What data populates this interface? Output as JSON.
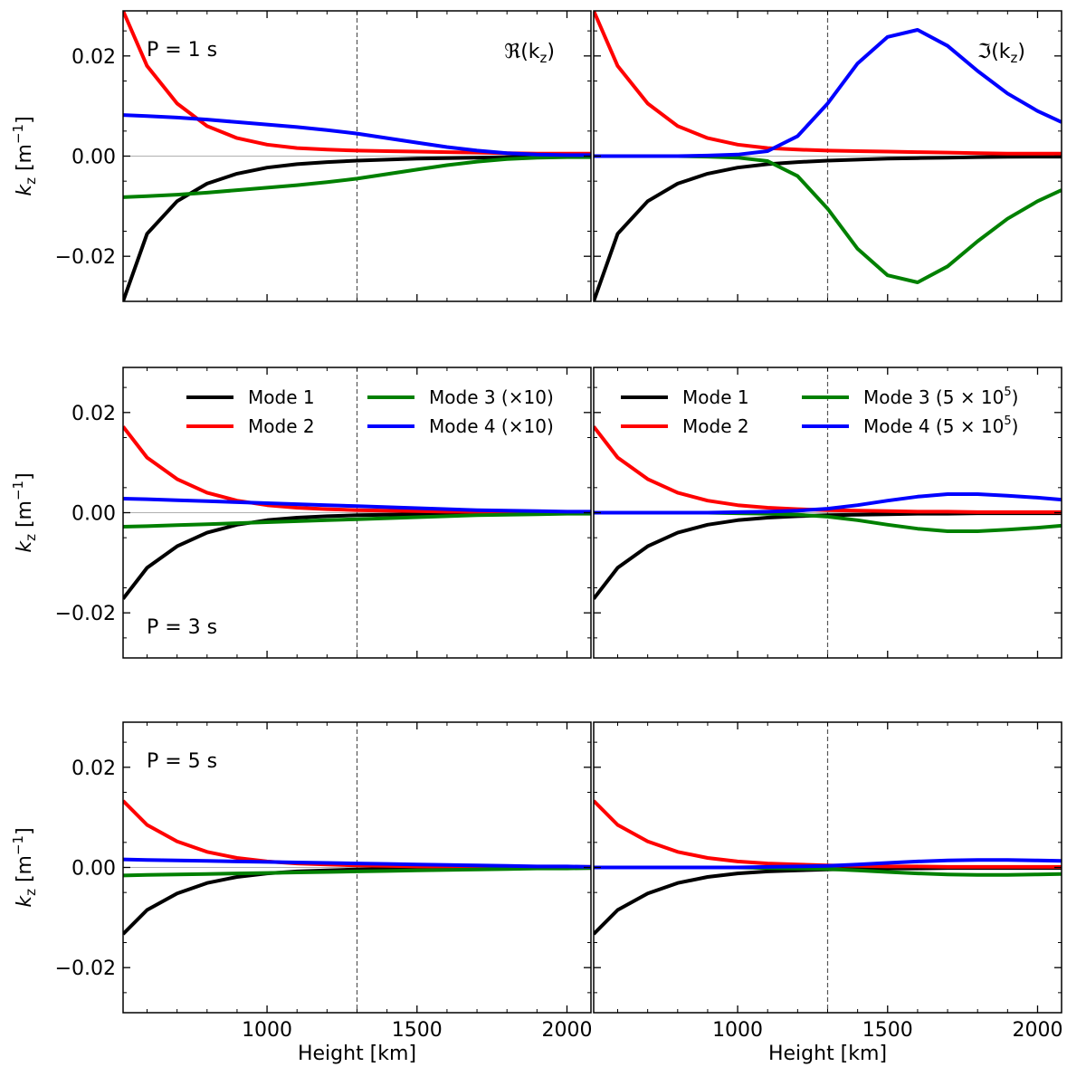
{
  "chart_data": {
    "type": "line",
    "figure": "kz vs height, 3x2 panel grid",
    "xlim": [
      520,
      2080
    ],
    "ylim": [
      -0.029,
      0.029
    ],
    "xticks": [
      1000,
      1500,
      2000
    ],
    "yticks": [
      0.02,
      0.0,
      -0.02
    ],
    "ytick_labels": [
      "0.02",
      "0.00",
      "−0.02"
    ],
    "xlabel": "Height [km]",
    "ylabel_main": "k",
    "ylabel_sub": "z",
    "ylabel_unit_open": " [m",
    "ylabel_unit_exp": "−1",
    "ylabel_unit_close": "]",
    "vline_x": 1300,
    "column_titles": [
      "ℜ(k",
      "ℑ(k"
    ],
    "column_title_sub": "z",
    "column_title_close": ")",
    "row_labels": [
      "P = 1 s",
      "P = 3 s",
      "P = 5 s"
    ],
    "legends": [
      {
        "column": 0,
        "entries": [
          {
            "name": "Mode 1",
            "color": "#000000"
          },
          {
            "name": "Mode 2",
            "color": "#ff0000"
          },
          {
            "name": "Mode 3 (×10)",
            "color": "#008000"
          },
          {
            "name": "Mode 4 (×10)",
            "color": "#0000ff"
          }
        ]
      },
      {
        "column": 1,
        "entries": [
          {
            "name": "Mode 1",
            "color": "#000000"
          },
          {
            "name": "Mode 2",
            "color": "#ff0000"
          },
          {
            "name": "Mode 3 (5 × 10",
            "sup": "5",
            "close": ")",
            "color": "#008000"
          },
          {
            "name": "Mode 4 (5 × 10",
            "sup": "5",
            "close": ")",
            "color": "#0000ff"
          }
        ]
      }
    ],
    "x": [
      520,
      600,
      700,
      800,
      900,
      1000,
      1100,
      1200,
      1300,
      1400,
      1500,
      1600,
      1700,
      1800,
      1900,
      2000,
      2080
    ],
    "panels": [
      {
        "row": 0,
        "col": 0,
        "component": "real",
        "period": "1 s",
        "series": [
          {
            "name": "Mode 1",
            "color": "#000000",
            "values": [
              -0.029,
              -0.0155,
              -0.009,
              -0.0055,
              -0.0035,
              -0.0023,
              -0.0016,
              -0.0012,
              -0.0009,
              -0.0007,
              -0.0005,
              -0.0004,
              -0.0003,
              -0.0002,
              -0.00015,
              -0.0001,
              -0.0001
            ]
          },
          {
            "name": "Mode 2",
            "color": "#ff0000",
            "values": [
              0.029,
              0.018,
              0.0105,
              0.006,
              0.0036,
              0.0023,
              0.0016,
              0.0013,
              0.0011,
              0.001,
              0.0009,
              0.0008,
              0.0007,
              0.0006,
              0.0005,
              0.0005,
              0.0005
            ]
          },
          {
            "name": "Mode 3",
            "color": "#008000",
            "values": [
              -0.0082,
              -0.008,
              -0.0077,
              -0.0073,
              -0.0068,
              -0.0063,
              -0.0058,
              -0.0052,
              -0.0045,
              -0.0036,
              -0.0027,
              -0.0018,
              -0.0011,
              -0.0006,
              -0.0003,
              -0.0002,
              -0.0002
            ]
          },
          {
            "name": "Mode 4",
            "color": "#0000ff",
            "values": [
              0.0082,
              0.008,
              0.0077,
              0.0073,
              0.0068,
              0.0063,
              0.0058,
              0.0052,
              0.0045,
              0.0036,
              0.0027,
              0.0018,
              0.0011,
              0.0006,
              0.0003,
              0.0002,
              0.0002
            ]
          }
        ]
      },
      {
        "row": 0,
        "col": 1,
        "component": "imaginary",
        "period": "1 s",
        "series": [
          {
            "name": "Mode 1",
            "color": "#000000",
            "values": [
              -0.029,
              -0.0155,
              -0.009,
              -0.0055,
              -0.0035,
              -0.0023,
              -0.0016,
              -0.0012,
              -0.0009,
              -0.0007,
              -0.0005,
              -0.0004,
              -0.0003,
              -0.0002,
              -0.00015,
              -0.0001,
              -0.0001
            ]
          },
          {
            "name": "Mode 2",
            "color": "#ff0000",
            "values": [
              0.029,
              0.018,
              0.0105,
              0.006,
              0.0036,
              0.0023,
              0.0016,
              0.0013,
              0.0011,
              0.001,
              0.0009,
              0.0008,
              0.0007,
              0.0006,
              0.0005,
              0.0005,
              0.0005
            ]
          },
          {
            "name": "Mode 3",
            "color": "#008000",
            "values": [
              0.0,
              0.0,
              0.0,
              0.0,
              -0.0001,
              -0.0003,
              -0.001,
              -0.004,
              -0.0105,
              -0.0185,
              -0.0238,
              -0.0252,
              -0.022,
              -0.017,
              -0.0125,
              -0.009,
              -0.0068
            ]
          },
          {
            "name": "Mode 4",
            "color": "#0000ff",
            "values": [
              0.0,
              0.0,
              0.0,
              0.0,
              0.0001,
              0.0003,
              0.001,
              0.004,
              0.0105,
              0.0185,
              0.0238,
              0.0252,
              0.022,
              0.017,
              0.0125,
              0.009,
              0.0068
            ]
          }
        ]
      },
      {
        "row": 1,
        "col": 0,
        "component": "real",
        "period": "3 s",
        "series": [
          {
            "name": "Mode 1",
            "color": "#000000",
            "values": [
              -0.0172,
              -0.011,
              -0.0067,
              -0.004,
              -0.0024,
              -0.0015,
              -0.001,
              -0.0007,
              -0.0005,
              -0.0004,
              -0.0003,
              -0.0002,
              -0.0002,
              -0.0001,
              -0.0001,
              -0.0001,
              -0.0001
            ]
          },
          {
            "name": "Mode 2",
            "color": "#ff0000",
            "values": [
              0.0172,
              0.011,
              0.0067,
              0.004,
              0.0024,
              0.0015,
              0.001,
              0.0007,
              0.0005,
              0.0004,
              0.0003,
              0.0002,
              0.0002,
              0.0001,
              0.0001,
              0.0001,
              0.0001
            ]
          },
          {
            "name": "Mode 3",
            "color": "#008000",
            "values": [
              -0.0028,
              -0.0027,
              -0.0025,
              -0.0023,
              -0.0021,
              -0.0019,
              -0.0017,
              -0.0015,
              -0.0013,
              -0.0011,
              -0.0009,
              -0.0007,
              -0.0005,
              -0.0004,
              -0.0003,
              -0.0002,
              -0.0002
            ]
          },
          {
            "name": "Mode 4",
            "color": "#0000ff",
            "values": [
              0.0028,
              0.0027,
              0.0025,
              0.0023,
              0.0021,
              0.0019,
              0.0017,
              0.0015,
              0.0013,
              0.0011,
              0.0009,
              0.0007,
              0.0005,
              0.0004,
              0.0003,
              0.0002,
              0.0002
            ]
          }
        ]
      },
      {
        "row": 1,
        "col": 1,
        "component": "imaginary",
        "period": "3 s",
        "series": [
          {
            "name": "Mode 1",
            "color": "#000000",
            "values": [
              -0.0172,
              -0.011,
              -0.0067,
              -0.004,
              -0.0024,
              -0.0015,
              -0.001,
              -0.0007,
              -0.0005,
              -0.0004,
              -0.0003,
              -0.0002,
              -0.0002,
              -0.0001,
              -0.0001,
              -0.0001,
              -0.0001
            ]
          },
          {
            "name": "Mode 2",
            "color": "#ff0000",
            "values": [
              0.0172,
              0.011,
              0.0067,
              0.004,
              0.0024,
              0.0015,
              0.001,
              0.0007,
              0.0005,
              0.0004,
              0.0003,
              0.0002,
              0.0002,
              0.0001,
              0.0001,
              0.0001,
              0.0001
            ]
          },
          {
            "name": "Mode 3",
            "color": "#008000",
            "values": [
              0.0,
              0.0,
              0.0,
              0.0,
              0.0,
              -0.0001,
              -0.0002,
              -0.0004,
              -0.0008,
              -0.0015,
              -0.0024,
              -0.0032,
              -0.0037,
              -0.0037,
              -0.0034,
              -0.003,
              -0.0026
            ]
          },
          {
            "name": "Mode 4",
            "color": "#0000ff",
            "values": [
              0.0,
              0.0,
              0.0,
              0.0,
              0.0,
              0.0001,
              0.0002,
              0.0004,
              0.0008,
              0.0015,
              0.0024,
              0.0032,
              0.0037,
              0.0037,
              0.0034,
              0.003,
              0.0026
            ]
          }
        ]
      },
      {
        "row": 2,
        "col": 0,
        "component": "real",
        "period": "5 s",
        "series": [
          {
            "name": "Mode 1",
            "color": "#000000",
            "values": [
              -0.0133,
              -0.0085,
              -0.0052,
              -0.0031,
              -0.0019,
              -0.0012,
              -0.0008,
              -0.0006,
              -0.0004,
              -0.0003,
              -0.0002,
              -0.0002,
              -0.0001,
              -0.0001,
              -0.0001,
              -0.0001,
              -0.0001
            ]
          },
          {
            "name": "Mode 2",
            "color": "#ff0000",
            "values": [
              0.0133,
              0.0085,
              0.0052,
              0.0031,
              0.0019,
              0.0012,
              0.0008,
              0.0006,
              0.0004,
              0.0003,
              0.0002,
              0.0002,
              0.0001,
              0.0001,
              0.0001,
              0.0001,
              0.0001
            ]
          },
          {
            "name": "Mode 3",
            "color": "#008000",
            "values": [
              -0.0016,
              -0.0015,
              -0.0014,
              -0.0013,
              -0.0012,
              -0.0011,
              -0.001,
              -0.0009,
              -0.0008,
              -0.0007,
              -0.0006,
              -0.0005,
              -0.0004,
              -0.0003,
              -0.0002,
              -0.0002,
              -0.0001
            ]
          },
          {
            "name": "Mode 4",
            "color": "#0000ff",
            "values": [
              0.0016,
              0.0015,
              0.0014,
              0.0013,
              0.0012,
              0.0011,
              0.001,
              0.0009,
              0.0008,
              0.0007,
              0.0006,
              0.0005,
              0.0004,
              0.0003,
              0.0002,
              0.0002,
              0.0001
            ]
          }
        ]
      },
      {
        "row": 2,
        "col": 1,
        "component": "imaginary",
        "period": "5 s",
        "series": [
          {
            "name": "Mode 1",
            "color": "#000000",
            "values": [
              -0.0133,
              -0.0085,
              -0.0052,
              -0.0031,
              -0.0019,
              -0.0012,
              -0.0008,
              -0.0006,
              -0.0004,
              -0.0003,
              -0.0002,
              -0.0002,
              -0.0001,
              -0.0001,
              -0.0001,
              -0.0001,
              -0.0001
            ]
          },
          {
            "name": "Mode 2",
            "color": "#ff0000",
            "values": [
              0.0133,
              0.0085,
              0.0052,
              0.0031,
              0.0019,
              0.0012,
              0.0008,
              0.0006,
              0.0004,
              0.0003,
              0.0002,
              0.0002,
              0.0001,
              0.0001,
              0.0001,
              0.0001,
              0.0001
            ]
          },
          {
            "name": "Mode 3",
            "color": "#008000",
            "values": [
              0.0,
              0.0,
              0.0,
              0.0,
              0.0,
              0.0,
              -0.0001,
              -0.0002,
              -0.0003,
              -0.0006,
              -0.0009,
              -0.0012,
              -0.0014,
              -0.0015,
              -0.0015,
              -0.0014,
              -0.0013
            ]
          },
          {
            "name": "Mode 4",
            "color": "#0000ff",
            "values": [
              0.0,
              0.0,
              0.0,
              0.0,
              0.0,
              0.0,
              0.0001,
              0.0002,
              0.0003,
              0.0006,
              0.0009,
              0.0012,
              0.0014,
              0.0015,
              0.0015,
              0.0014,
              0.0013
            ]
          }
        ]
      }
    ]
  }
}
